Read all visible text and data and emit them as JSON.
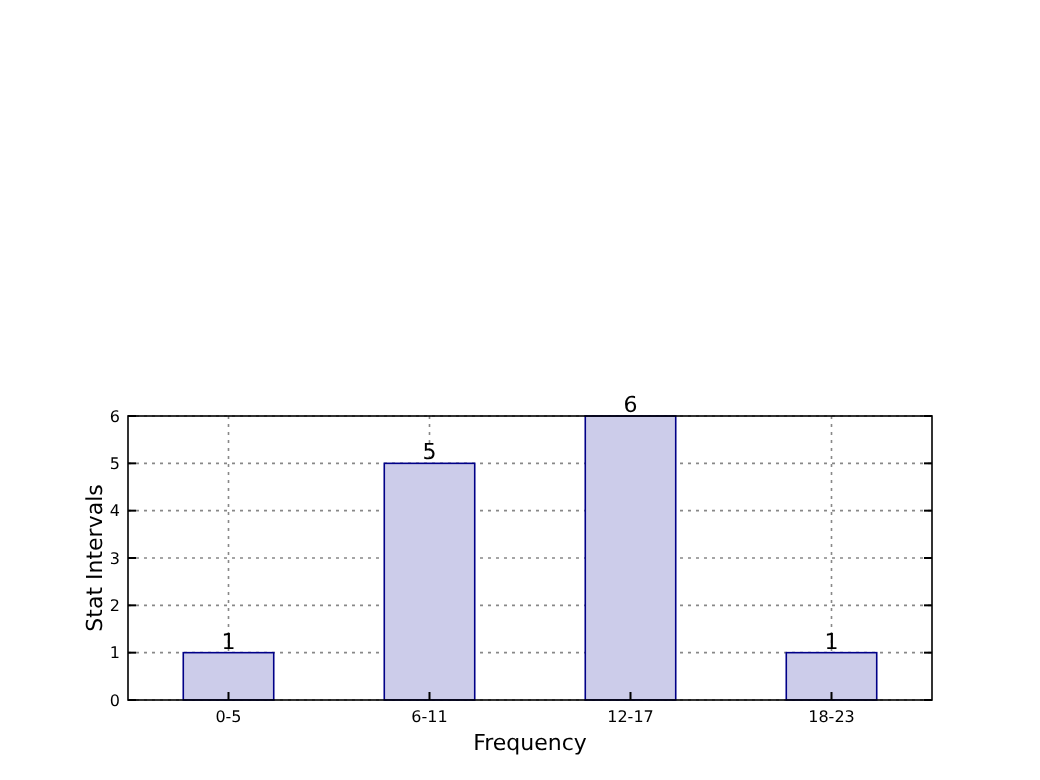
{
  "chart_data": {
    "type": "bar",
    "xlabel": "Frequency",
    "ylabel": "Stat Intervals",
    "categories": [
      "0-5",
      "6-11",
      "12-17",
      "18-23"
    ],
    "values": [
      1,
      5,
      6,
      1
    ],
    "color": "#ccccea",
    "ylim": [
      0,
      6
    ],
    "yticks": [
      0,
      1,
      2,
      3,
      4,
      5,
      6
    ],
    "grid": true,
    "data_labels": true
  }
}
